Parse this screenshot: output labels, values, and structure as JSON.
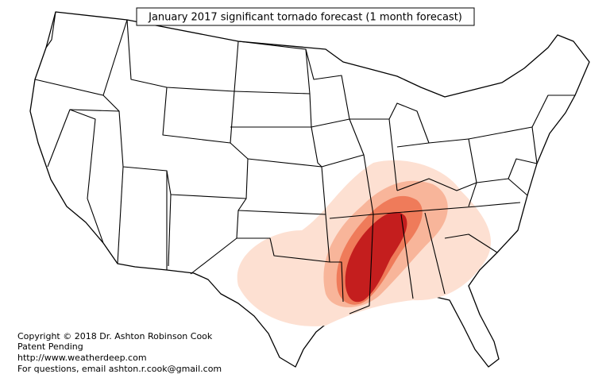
{
  "title": "January 2017 significant tornado forecast (1 month forecast)",
  "credits": [
    "Copyright © 2018 Dr. Ashton Robinson Cook",
    "Patent Pending",
    "http://www.weatherdeep.com",
    "For questions, email ashton.r.cook@gmail.com"
  ]
}
